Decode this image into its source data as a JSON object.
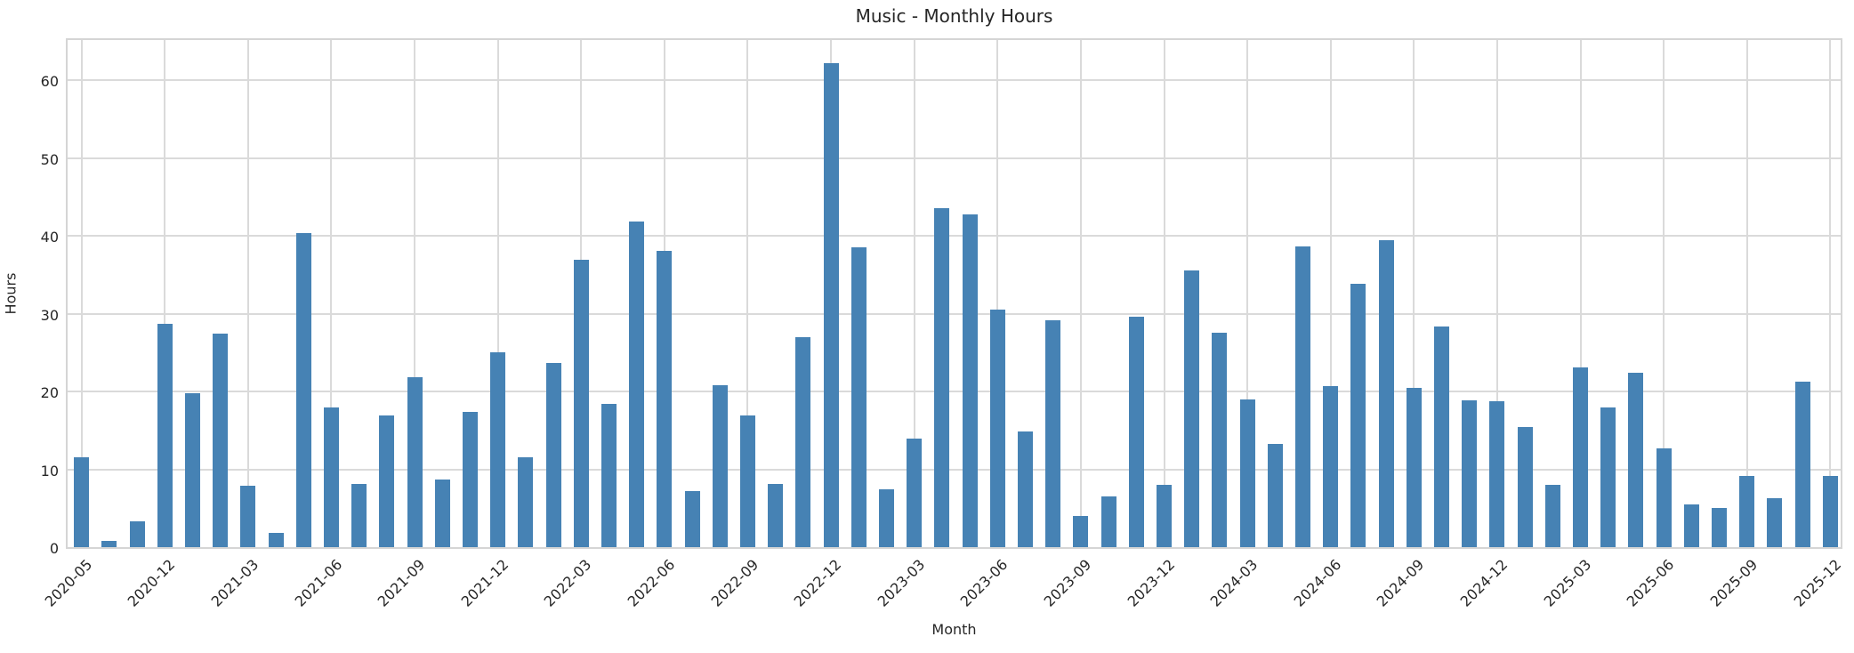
{
  "chart_data": {
    "type": "bar",
    "title": "Music - Monthly Hours",
    "xlabel": "Month",
    "ylabel": "Hours",
    "grid": true,
    "legend_position": "none",
    "bar_color": "#4682b4",
    "grid_color": "#dadada",
    "text_color": "#262626",
    "ylim": [
      0,
      65.6
    ],
    "y_ticks": [
      0,
      10,
      20,
      30,
      40,
      50,
      60
    ],
    "x_tick_labels": [
      "2020-05",
      "2020-12",
      "2021-03",
      "2021-06",
      "2021-09",
      "2021-12",
      "2022-03",
      "2022-06",
      "2022-09",
      "2022-12",
      "2023-03",
      "2023-06",
      "2023-09",
      "2023-12",
      "2024-03",
      "2024-06",
      "2024-09",
      "2024-12",
      "2025-03",
      "2025-06",
      "2025-09",
      "2025-12"
    ],
    "x_tick_indices": [
      0,
      3,
      6,
      9,
      12,
      15,
      18,
      21,
      24,
      27,
      30,
      33,
      36,
      39,
      42,
      45,
      48,
      51,
      54,
      57,
      60,
      63
    ],
    "values": [
      11.6,
      0.8,
      3.3,
      28.7,
      19.8,
      27.4,
      7.9,
      1.8,
      40.3,
      17.9,
      8.1,
      16.9,
      21.8,
      8.7,
      17.4,
      25.0,
      11.5,
      23.7,
      36.9,
      18.4,
      41.8,
      38.1,
      7.2,
      20.8,
      16.9,
      8.1,
      27.0,
      62.2,
      38.5,
      7.4,
      13.9,
      43.5,
      42.7,
      30.5,
      14.9,
      29.1,
      4.0,
      6.5,
      29.6,
      8.0,
      35.5,
      27.5,
      19.0,
      13.3,
      38.6,
      20.7,
      33.8,
      39.4,
      20.5,
      28.4,
      18.9,
      18.8,
      15.4,
      8.0,
      23.1,
      17.9,
      22.4,
      12.7,
      5.5,
      5.0,
      9.2,
      6.3,
      21.3,
      9.1
    ]
  }
}
